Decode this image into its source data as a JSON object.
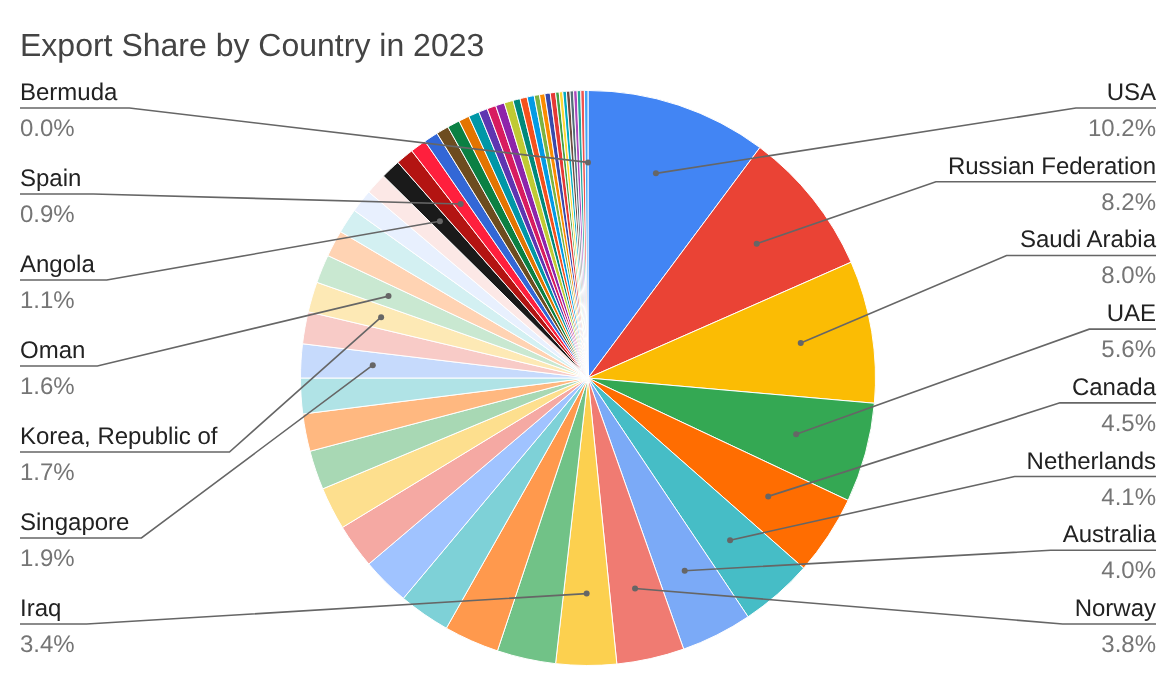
{
  "chart_data": {
    "type": "pie",
    "title": "Export Share by Country in 2023",
    "categories": [
      "USA",
      "Russian Federation",
      "Saudi Arabia",
      "UAE",
      "Canada",
      "Netherlands",
      "Australia",
      "Norway",
      "Iraq",
      null,
      null,
      null,
      null,
      null,
      null,
      null,
      null,
      null,
      "Singapore",
      null,
      "Korea, Republic of",
      "Oman",
      null,
      null,
      null,
      null,
      "Angola",
      null,
      "Spain",
      null,
      null,
      null,
      null,
      null,
      null,
      null,
      null,
      null,
      null,
      null,
      null,
      null,
      null,
      null,
      null,
      null,
      null,
      null,
      null,
      null,
      null,
      null,
      null,
      null,
      "Bermuda"
    ],
    "values": [
      10.2,
      8.2,
      8.0,
      5.6,
      4.5,
      4.1,
      4.0,
      3.8,
      3.4,
      3.3,
      3.1,
      2.9,
      2.7,
      2.5,
      2.4,
      2.2,
      2.1,
      2.0,
      1.9,
      1.8,
      1.7,
      1.6,
      1.5,
      1.4,
      1.3,
      1.2,
      1.1,
      1.0,
      0.9,
      0.8,
      0.7,
      0.7,
      0.6,
      0.6,
      0.5,
      0.5,
      0.5,
      0.5,
      0.4,
      0.4,
      0.4,
      0.3,
      0.3,
      0.3,
      0.3,
      0.2,
      0.2,
      0.2,
      0.2,
      0.2,
      0.2,
      0.2,
      0.2,
      0.2,
      0.0
    ],
    "value_labels": [
      "10.2%",
      "8.2%",
      "8.0%",
      "5.6%",
      "4.5%",
      "4.1%",
      "4.0%",
      "3.8%",
      "3.4%",
      null,
      null,
      null,
      null,
      null,
      null,
      null,
      null,
      null,
      "1.9%",
      null,
      "1.7%",
      "1.6%",
      null,
      null,
      null,
      null,
      "1.1%",
      null,
      "0.9%",
      null,
      null,
      null,
      null,
      null,
      null,
      null,
      null,
      null,
      null,
      null,
      null,
      null,
      null,
      null,
      null,
      null,
      null,
      null,
      null,
      null,
      null,
      null,
      null,
      null,
      "0.0%"
    ],
    "colors": [
      "#4285f4",
      "#ea4335",
      "#fbbc04",
      "#34a853",
      "#ff6d01",
      "#46bdc6",
      "#7baaf7",
      "#f07b72",
      "#fcd04f",
      "#71c287",
      "#ff994d",
      "#7ed1d7",
      "#a0c3ff",
      "#f5a9a3",
      "#fddf8e",
      "#a8d8b4",
      "#ffb880",
      "#b0e3e6",
      "#c6dafc",
      "#f8cbc7",
      "#fde9b5",
      "#c9e8d1",
      "#ffd3b3",
      "#d3f0f2",
      "#e8f0fe",
      "#fce8e6",
      "#1a1a1a",
      "#b31412",
      "#ff1f3d",
      "#3367d6",
      "#6d4c1f",
      "#0b8043",
      "#e37400",
      "#0097a7",
      "#5e35b1",
      "#d81b60",
      "#8e24aa",
      "#c0ca33",
      "#00897b",
      "#f4511e",
      "#039be5",
      "#7cb342",
      "#fb8c00",
      "#3949ab",
      "#e53935",
      "#43a047",
      "#fdd835",
      "#00acc1",
      "#6d4c41",
      "#546e7a",
      "#ab47bc",
      "#26a69a",
      "#ef5350",
      "#42a5f5",
      "#9ccc65"
    ],
    "legend": false
  }
}
